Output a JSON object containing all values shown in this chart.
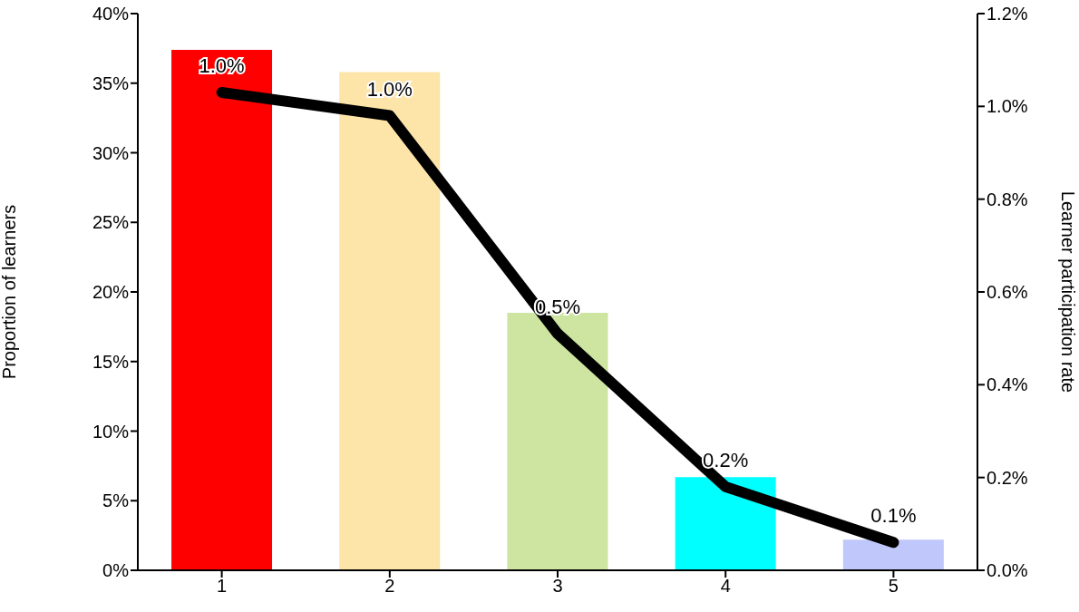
{
  "chart_data": {
    "type": "bar",
    "categories": [
      "1",
      "2",
      "3",
      "4",
      "5"
    ],
    "ylabel": "Proportion of learners",
    "y2label": "Learner participation rate",
    "ylim": [
      0,
      40
    ],
    "yticks": [
      {
        "value": 0,
        "label": "0%"
      },
      {
        "value": 5,
        "label": "5%"
      },
      {
        "value": 10,
        "label": "10%"
      },
      {
        "value": 15,
        "label": "15%"
      },
      {
        "value": 20,
        "label": "20%"
      },
      {
        "value": 25,
        "label": "25%"
      },
      {
        "value": 30,
        "label": "30%"
      },
      {
        "value": 35,
        "label": "35%"
      },
      {
        "value": 40,
        "label": "40%"
      }
    ],
    "y2lim": [
      0,
      1.2
    ],
    "y2ticks": [
      {
        "value": 0,
        "label": "0.0%"
      },
      {
        "value": 0.2,
        "label": "0.2%"
      },
      {
        "value": 0.4,
        "label": "0.4%"
      },
      {
        "value": 0.6,
        "label": "0.6%"
      },
      {
        "value": 0.8,
        "label": "0.8%"
      },
      {
        "value": 1.0,
        "label": "1.0%"
      },
      {
        "value": 1.2,
        "label": "1.2%"
      }
    ],
    "series": [
      {
        "colors": [
          "#ff0000",
          "#fde5aa",
          "#cde5a0",
          "#00ffff",
          "#bfc7fb"
        ],
        "values": [
          37.4,
          35.8,
          18.5,
          6.7,
          2.2
        ]
      },
      {
        "type": "line",
        "axis": "y2",
        "color": "#000000",
        "values": [
          1.03,
          0.98,
          0.51,
          0.18,
          0.06
        ],
        "value_labels": [
          "1.0%",
          "1.0%",
          "0.5%",
          "0.2%",
          "0.1%"
        ]
      }
    ]
  }
}
